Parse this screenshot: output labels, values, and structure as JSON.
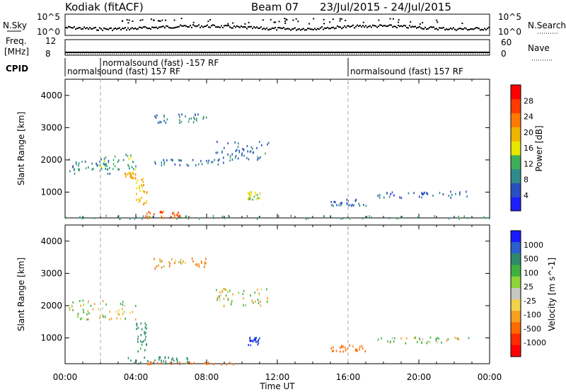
{
  "header": {
    "station": "Kodiak (fitACF)",
    "beam": "Beam 07",
    "dates": "23/Jul/2015 - 24/Jul/2015"
  },
  "sky_panel": {
    "left_label": "N.Sky",
    "right_label": "N.Search",
    "left_ticks": [
      "10^5",
      "10^0"
    ],
    "right_ticks": [
      "10^5",
      "10^0"
    ]
  },
  "freq_panel": {
    "left_label_1": "Freq.",
    "left_label_2": "[MHz]",
    "right_label": "Nave",
    "left_ticks": [
      "12",
      "8"
    ],
    "right_ticks": [
      "60",
      "0"
    ]
  },
  "cpid": {
    "label": "CPID",
    "segments": [
      {
        "text": "normalsound (fast) 157 RF",
        "start_h": 0,
        "row": 1
      },
      {
        "text": "normalsound (fast) -157 RF",
        "start_h": 2,
        "row": 0
      },
      {
        "text": "normalsound (fast) 157 RF",
        "start_h": 16,
        "row": 1
      }
    ]
  },
  "power_panel": {
    "ylabel": "Slant Range [km]",
    "yticks": [
      "1000",
      "2000",
      "3000",
      "4000"
    ],
    "cbar_label": "Power [dB]",
    "cbar_ticks": [
      "4",
      "8",
      "12",
      "16",
      "20",
      "24",
      "28"
    ],
    "cbar_colors": [
      "#1f1fff",
      "#2a4fc0",
      "#2f8a8a",
      "#3fae5a",
      "#e6e600",
      "#f0b400",
      "#ff7a00",
      "#ff3a00",
      "#ff0000"
    ]
  },
  "velocity_panel": {
    "ylabel": "Slant Range [km]",
    "yticks": [
      "1000",
      "2000",
      "3000",
      "4000"
    ],
    "cbar_label": "Velocity [m s^-1]",
    "cbar_ticks": [
      "1000",
      "500",
      "100",
      "25",
      "-25",
      "-100",
      "-500",
      "-1000"
    ],
    "cbar_colors": [
      "#1a1aff",
      "#2b5fcc",
      "#2f8a6a",
      "#3fb03f",
      "#8fd23a",
      "#c8c8c0",
      "#f2d24a",
      "#f5a020",
      "#ff6a00",
      "#ff2a00",
      "#ff0000"
    ]
  },
  "xaxis": {
    "label": "Time UT",
    "ticks": [
      "00:00",
      "04:00",
      "08:00",
      "12:00",
      "16:00",
      "20:00",
      "00:00"
    ]
  },
  "chart_data": {
    "type": "heatmap",
    "title": "Kodiak (fitACF)",
    "subtitle": "Beam 07 23/Jul/2015 - 24/Jul/2015",
    "xlabel": "Time UT",
    "ylabel": "Slant Range [km]",
    "xlim_hours": [
      0,
      24
    ],
    "ylim_km": [
      200,
      4500
    ],
    "markers_hours": [
      2,
      16
    ],
    "power_regions": [
      {
        "t0": 0.2,
        "t1": 2.5,
        "r0": 1600,
        "r1": 2050,
        "level": 10
      },
      {
        "t0": 2.0,
        "t1": 4.0,
        "r0": 1700,
        "r1": 2200,
        "level": 14
      },
      {
        "t0": 3.3,
        "t1": 4.0,
        "r0": 1450,
        "r1": 1650,
        "level": 22
      },
      {
        "t0": 4.0,
        "t1": 4.6,
        "r0": 600,
        "r1": 1500,
        "level": 22
      },
      {
        "t0": 4.5,
        "t1": 6.5,
        "r0": 230,
        "r1": 430,
        "level": 28
      },
      {
        "t0": 5.0,
        "t1": 9.0,
        "r0": 1850,
        "r1": 2050,
        "level": 8
      },
      {
        "t0": 5.0,
        "t1": 8.0,
        "r0": 3150,
        "r1": 3450,
        "level": 9
      },
      {
        "t0": 10.3,
        "t1": 11.0,
        "r0": 800,
        "r1": 1050,
        "level": 18
      },
      {
        "t0": 8.5,
        "t1": 11.5,
        "r0": 2000,
        "r1": 2600,
        "level": 9
      },
      {
        "t0": 15.0,
        "t1": 17.0,
        "r0": 600,
        "r1": 800,
        "level": 7
      },
      {
        "t0": 17.5,
        "t1": 23.0,
        "r0": 850,
        "r1": 1050,
        "level": 7
      },
      {
        "t0": 0,
        "t1": 24,
        "r0": 200,
        "r1": 300,
        "level": 12
      }
    ],
    "velocity_regions": [
      {
        "t0": 0.2,
        "t1": 4.0,
        "r0": 1600,
        "r1": 2200,
        "v": 0
      },
      {
        "t0": 4.0,
        "t1": 4.6,
        "r0": 600,
        "r1": 1500,
        "v": 150
      },
      {
        "t0": 3.5,
        "t1": 7.0,
        "r0": 230,
        "r1": 430,
        "v": 200
      },
      {
        "t0": 4.5,
        "t1": 9.5,
        "r0": 200,
        "r1": 280,
        "v": -150
      },
      {
        "t0": 5.0,
        "t1": 8.0,
        "r0": 3150,
        "r1": 3500,
        "v": -60
      },
      {
        "t0": 10.3,
        "t1": 11.0,
        "r0": 800,
        "r1": 1050,
        "v": 800
      },
      {
        "t0": 8.5,
        "t1": 11.5,
        "r0": 2000,
        "r1": 2600,
        "v": 0
      },
      {
        "t0": 15.0,
        "t1": 17.0,
        "r0": 600,
        "r1": 800,
        "v": -120
      },
      {
        "t0": 17.5,
        "t1": 23.0,
        "r0": 850,
        "r1": 1050,
        "v": 0
      }
    ]
  }
}
